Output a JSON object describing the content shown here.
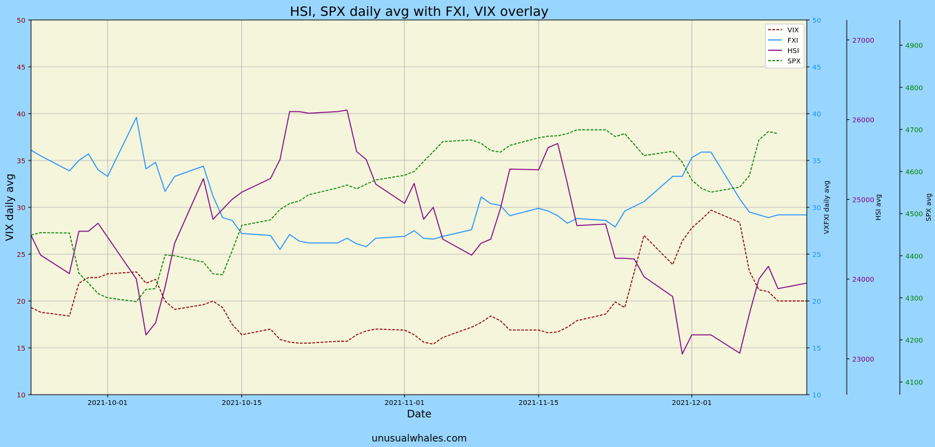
{
  "chart_data": {
    "type": "line",
    "title": "HSI, SPX daily avg with FXI, VIX overlay",
    "xlabel": "Date",
    "footer": "unusualwhales.com",
    "background": "#99d6ff",
    "plot_background": "#f5f5dc",
    "x_ticks": [
      "2021-10-01",
      "2021-10-15",
      "2021-11-01",
      "2021-11-15",
      "2021-12-01"
    ],
    "xlim": [
      "2021-09-23",
      "2021-12-13"
    ],
    "grid": true,
    "legend_position": "top-right",
    "axes": {
      "vix": {
        "label": "VIX daily avg",
        "ylim": [
          10,
          50
        ],
        "ticks": [
          "10",
          "15",
          "20",
          "25",
          "30",
          "35",
          "40",
          "45",
          "50"
        ],
        "color": "#8b0000",
        "side": "left"
      },
      "fxi": {
        "label": "VXFXI daily avg",
        "ylim": [
          10,
          50
        ],
        "ticks": [
          "10",
          "15",
          "20",
          "25",
          "30",
          "35",
          "40",
          "45",
          "50"
        ],
        "color": "#1e90ff",
        "side": "right"
      },
      "hsi": {
        "label": "HSI avg",
        "ylim": [
          22550,
          27250
        ],
        "ticks": [
          "23000",
          "24000",
          "25000",
          "26000",
          "27000"
        ],
        "color": "#800080",
        "side": "right"
      },
      "spx": {
        "label": "SPX avg",
        "ylim": [
          4070,
          4960
        ],
        "ticks": [
          "4100",
          "4200",
          "4300",
          "4400",
          "4500",
          "4600",
          "4700",
          "4800",
          "4900"
        ],
        "color": "#008000",
        "side": "right"
      }
    },
    "series": [
      {
        "name": "VIX",
        "axis": "vix",
        "style": "dashed",
        "color": "#8b0000",
        "x": [
          "2021-09-23",
          "2021-09-24",
          "2021-09-27",
          "2021-09-28",
          "2021-09-29",
          "2021-09-30",
          "2021-10-01",
          "2021-10-04",
          "2021-10-05",
          "2021-10-06",
          "2021-10-07",
          "2021-10-08",
          "2021-10-11",
          "2021-10-12",
          "2021-10-13",
          "2021-10-14",
          "2021-10-15",
          "2021-10-18",
          "2021-10-19",
          "2021-10-20",
          "2021-10-21",
          "2021-10-22",
          "2021-10-25",
          "2021-10-26",
          "2021-10-27",
          "2021-10-28",
          "2021-10-29",
          "2021-11-01",
          "2021-11-02",
          "2021-11-03",
          "2021-11-04",
          "2021-11-05",
          "2021-11-08",
          "2021-11-09",
          "2021-11-10",
          "2021-11-11",
          "2021-11-12",
          "2021-11-15",
          "2021-11-16",
          "2021-11-17",
          "2021-11-18",
          "2021-11-19",
          "2021-11-22",
          "2021-11-23",
          "2021-11-24",
          "2021-11-26",
          "2021-11-29",
          "2021-11-30",
          "2021-12-01",
          "2021-12-02",
          "2021-12-03",
          "2021-12-06",
          "2021-12-07",
          "2021-12-08",
          "2021-12-09",
          "2021-12-10",
          "2021-12-13"
        ],
        "values": [
          19.3,
          18.8,
          18.4,
          21.9,
          22.5,
          22.5,
          22.9,
          23.1,
          21.9,
          22.3,
          20.0,
          19.1,
          19.6,
          20.0,
          19.3,
          17.5,
          16.4,
          17.0,
          15.9,
          15.6,
          15.5,
          15.5,
          15.7,
          15.7,
          16.4,
          16.8,
          17.0,
          16.9,
          16.4,
          15.6,
          15.4,
          16.1,
          17.2,
          17.7,
          18.4,
          17.9,
          16.9,
          16.9,
          16.6,
          16.7,
          17.2,
          17.9,
          18.6,
          19.9,
          19.3,
          27.0,
          23.9,
          26.4,
          27.8,
          28.7,
          29.7,
          28.4,
          23.2,
          21.2,
          21.0,
          20.0,
          20.0
        ]
      },
      {
        "name": "FXI",
        "axis": "fxi",
        "style": "solid",
        "color": "#1e90ff",
        "x": [
          "2021-09-23",
          "2021-09-24",
          "2021-09-27",
          "2021-09-28",
          "2021-09-29",
          "2021-09-30",
          "2021-10-01",
          "2021-10-04",
          "2021-10-05",
          "2021-10-06",
          "2021-10-07",
          "2021-10-08",
          "2021-10-11",
          "2021-10-12",
          "2021-10-13",
          "2021-10-14",
          "2021-10-15",
          "2021-10-18",
          "2021-10-19",
          "2021-10-20",
          "2021-10-21",
          "2021-10-22",
          "2021-10-25",
          "2021-10-26",
          "2021-10-27",
          "2021-10-28",
          "2021-10-29",
          "2021-11-01",
          "2021-11-02",
          "2021-11-03",
          "2021-11-04",
          "2021-11-05",
          "2021-11-08",
          "2021-11-09",
          "2021-11-10",
          "2021-11-11",
          "2021-11-12",
          "2021-11-15",
          "2021-11-16",
          "2021-11-17",
          "2021-11-18",
          "2021-11-19",
          "2021-11-22",
          "2021-11-23",
          "2021-11-24",
          "2021-11-26",
          "2021-11-29",
          "2021-11-30",
          "2021-12-01",
          "2021-12-02",
          "2021-12-03",
          "2021-12-06",
          "2021-12-07",
          "2021-12-08",
          "2021-12-09",
          "2021-12-10",
          "2021-12-13"
        ],
        "values": [
          36.1,
          35.5,
          33.9,
          35.0,
          35.7,
          34.0,
          33.3,
          39.6,
          34.1,
          34.8,
          31.7,
          33.3,
          34.4,
          31.2,
          28.9,
          28.6,
          27.2,
          27.0,
          25.5,
          27.1,
          26.4,
          26.2,
          26.2,
          26.7,
          26.1,
          25.8,
          26.7,
          26.9,
          27.5,
          26.7,
          26.6,
          26.9,
          27.6,
          31.1,
          30.4,
          30.2,
          29.1,
          29.9,
          29.6,
          29.1,
          28.3,
          28.8,
          28.6,
          27.9,
          29.6,
          30.6,
          33.3,
          33.3,
          35.3,
          35.9,
          35.9,
          30.9,
          29.5,
          29.2,
          28.9,
          29.2,
          29.2
        ]
      },
      {
        "name": "HSI",
        "axis": "hsi",
        "style": "solid",
        "color": "#800080",
        "x": [
          "2021-09-23",
          "2021-09-24",
          "2021-09-27",
          "2021-09-28",
          "2021-09-29",
          "2021-09-30",
          "2021-10-04",
          "2021-10-05",
          "2021-10-06",
          "2021-10-07",
          "2021-10-08",
          "2021-10-11",
          "2021-10-12",
          "2021-10-14",
          "2021-10-15",
          "2021-10-18",
          "2021-10-19",
          "2021-10-20",
          "2021-10-21",
          "2021-10-22",
          "2021-10-25",
          "2021-10-26",
          "2021-10-27",
          "2021-10-28",
          "2021-10-29",
          "2021-11-01",
          "2021-11-02",
          "2021-11-03",
          "2021-11-04",
          "2021-11-05",
          "2021-11-08",
          "2021-11-09",
          "2021-11-10",
          "2021-11-11",
          "2021-11-12",
          "2021-11-15",
          "2021-11-16",
          "2021-11-17",
          "2021-11-18",
          "2021-11-19",
          "2021-11-22",
          "2021-11-23",
          "2021-11-24",
          "2021-11-25",
          "2021-11-26",
          "2021-11-29",
          "2021-11-30",
          "2021-12-01",
          "2021-12-02",
          "2021-12-03",
          "2021-12-06",
          "2021-12-07",
          "2021-12-08",
          "2021-12-09",
          "2021-12-10",
          "2021-12-13"
        ],
        "values": [
          24.55,
          24.3,
          24.07,
          24.6,
          24.6,
          24.7,
          24.0,
          23.3,
          23.45,
          23.9,
          24.45,
          25.26,
          24.75,
          25.0,
          25.09,
          25.26,
          25.5,
          26.1,
          26.1,
          26.08,
          26.1,
          26.12,
          25.6,
          25.5,
          25.19,
          24.95,
          25.2,
          24.75,
          24.9,
          24.5,
          24.3,
          24.45,
          24.5,
          24.88,
          25.38,
          25.37,
          25.65,
          25.7,
          25.2,
          24.67,
          24.69,
          24.26,
          24.26,
          24.25,
          24.03,
          23.78,
          23.06,
          23.3,
          23.3,
          23.3,
          23.07,
          23.56,
          24.0,
          24.16,
          23.88,
          23.95
        ]
      },
      {
        "name": "SPX",
        "axis": "spx",
        "style": "dashed",
        "color": "#008000",
        "x": [
          "2021-09-23",
          "2021-09-24",
          "2021-09-27",
          "2021-09-28",
          "2021-09-29",
          "2021-09-30",
          "2021-10-01",
          "2021-10-04",
          "2021-10-05",
          "2021-10-06",
          "2021-10-07",
          "2021-10-08",
          "2021-10-11",
          "2021-10-12",
          "2021-10-13",
          "2021-10-14",
          "2021-10-15",
          "2021-10-18",
          "2021-10-19",
          "2021-10-20",
          "2021-10-21",
          "2021-10-22",
          "2021-10-25",
          "2021-10-26",
          "2021-10-27",
          "2021-10-28",
          "2021-10-29",
          "2021-11-01",
          "2021-11-02",
          "2021-11-03",
          "2021-11-04",
          "2021-11-05",
          "2021-11-08",
          "2021-11-09",
          "2021-11-10",
          "2021-11-11",
          "2021-11-12",
          "2021-11-15",
          "2021-11-16",
          "2021-11-17",
          "2021-11-18",
          "2021-11-19",
          "2021-11-22",
          "2021-11-23",
          "2021-11-24",
          "2021-11-26",
          "2021-11-29",
          "2021-11-30",
          "2021-12-01",
          "2021-12-02",
          "2021-12-03",
          "2021-12-06",
          "2021-12-07",
          "2021-12-08",
          "2021-12-09",
          "2021-12-10"
        ],
        "values": [
          4449,
          4455,
          4454,
          4359,
          4335,
          4310,
          4300,
          4291,
          4320,
          4322,
          4402,
          4400,
          4385,
          4357,
          4355,
          4412,
          4472,
          4485,
          4510,
          4524,
          4530,
          4545,
          4561,
          4568,
          4559,
          4570,
          4580,
          4591,
          4600,
          4624,
          4647,
          4671,
          4675,
          4667,
          4650,
          4646,
          4662,
          4680,
          4684,
          4685,
          4690,
          4699,
          4699,
          4683,
          4690,
          4638,
          4648,
          4622,
          4580,
          4560,
          4551,
          4563,
          4590,
          4675,
          4695,
          4690
        ]
      }
    ]
  }
}
